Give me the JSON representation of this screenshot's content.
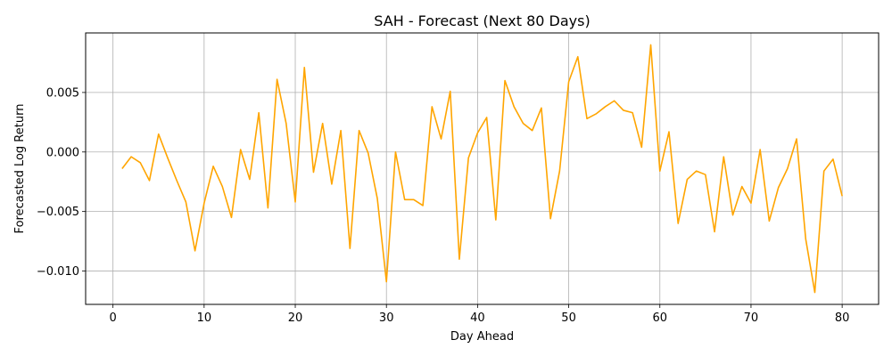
{
  "chart_data": {
    "type": "line",
    "title": "SAH - Forecast (Next 80 Days)",
    "xlabel": "Day Ahead",
    "ylabel": "Forecasted Log Return",
    "xlim": [
      -3,
      84
    ],
    "ylim": [
      -0.0128,
      0.01
    ],
    "xticks": [
      0,
      10,
      20,
      30,
      40,
      50,
      60,
      70,
      80
    ],
    "xtick_labels": [
      "0",
      "10",
      "20",
      "30",
      "40",
      "50",
      "60",
      "70",
      "80"
    ],
    "yticks": [
      -0.01,
      -0.005,
      0.0,
      0.005
    ],
    "ytick_labels": [
      "−0.010",
      "−0.005",
      "0.000",
      "0.005"
    ],
    "grid": true,
    "line_color": "#ffa500",
    "series": [
      {
        "x": [
          1,
          2,
          3,
          4,
          5,
          6,
          7,
          8,
          9,
          10,
          11,
          12,
          13,
          14,
          15,
          16,
          17,
          18,
          19,
          20,
          21,
          22,
          23,
          24,
          25,
          26,
          27,
          28,
          29,
          30,
          31,
          32,
          33,
          34,
          35,
          36,
          37,
          38,
          39,
          40,
          41,
          42,
          43,
          44,
          45,
          46,
          47,
          48,
          49,
          50,
          51,
          52,
          53,
          54,
          55,
          56,
          57,
          58,
          59,
          60,
          61,
          62,
          63,
          64,
          65,
          66,
          67,
          68,
          69,
          70,
          71,
          72,
          73,
          74,
          75,
          76,
          77,
          78,
          79,
          80
        ],
        "y": [
          -0.0014,
          -0.0004,
          -0.0009,
          -0.0024,
          0.0015,
          -0.0005,
          -0.0024,
          -0.0042,
          -0.0083,
          -0.0043,
          -0.0012,
          -0.0029,
          -0.0055,
          0.0002,
          -0.0023,
          0.0033,
          -0.0047,
          0.0061,
          0.0024,
          -0.0042,
          0.0071,
          -0.0017,
          0.0024,
          -0.0027,
          0.0018,
          -0.0081,
          0.0018,
          -0.0001,
          -0.0039,
          -0.0109,
          0.0,
          -0.004,
          -0.004,
          -0.0045,
          0.0038,
          0.0011,
          0.0051,
          -0.009,
          -0.0005,
          0.0016,
          0.0029,
          -0.0057,
          0.006,
          0.0038,
          0.0024,
          0.0018,
          0.0037,
          -0.0056,
          -0.0016,
          0.0059,
          0.008,
          0.0028,
          0.0032,
          0.0038,
          0.0043,
          0.0035,
          0.0033,
          0.0004,
          0.009,
          -0.0016,
          0.0017,
          -0.006,
          -0.0023,
          -0.0016,
          -0.0019,
          -0.0067,
          -0.0004,
          -0.0053,
          -0.0029,
          -0.0043,
          0.0002,
          -0.0058,
          -0.003,
          -0.0014,
          0.0011,
          -0.0073,
          -0.0118,
          -0.0016,
          -0.0006,
          -0.0037
        ]
      }
    ]
  }
}
